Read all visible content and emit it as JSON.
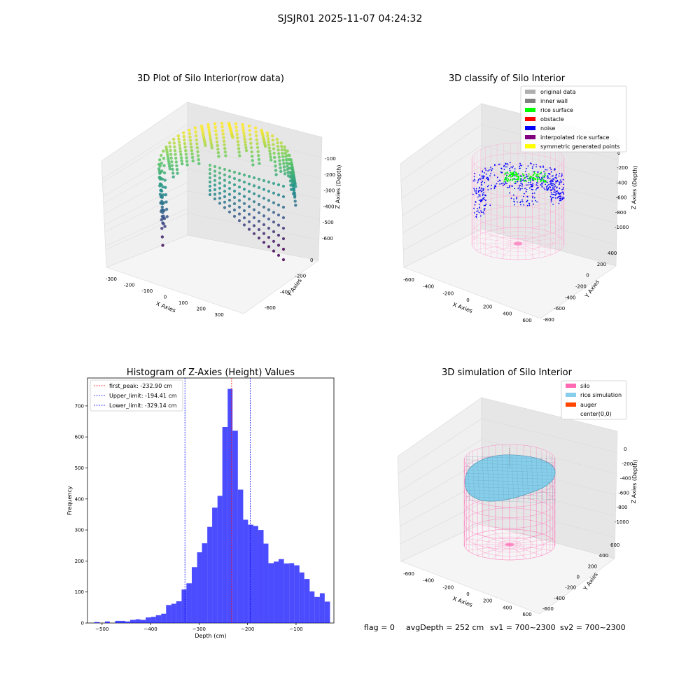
{
  "figure": {
    "suptitle": "SJSJR01 2025-11-07 04:24:32",
    "footer": {
      "flag": "flag = 0",
      "avg_depth": "avgDepth = 252 cm",
      "sv1": "sv1 = 700~2300",
      "sv2": "sv2 = 700~2300"
    }
  },
  "panels": {
    "raw": {
      "title": "3D Plot of Silo Interior(row data)",
      "xlabel": "X Axies",
      "ylabel": "Y Axies",
      "zlabel": "Z Axies (Depth)",
      "xticks": [
        "-300",
        "-200",
        "-100",
        "0",
        "100",
        "200",
        "300"
      ],
      "yticks": [
        "-600",
        "-400",
        "-200",
        "0"
      ],
      "zticks": [
        "-100",
        "-200",
        "-300",
        "-400",
        "-500",
        "-600"
      ],
      "colormap": "viridis"
    },
    "classify": {
      "title": "3D classify of Silo Interior",
      "xlabel": "X Axies",
      "ylabel": "Y Axies",
      "zlabel": "Z Axies (Depth)",
      "xticks": [
        "-600",
        "-400",
        "-200",
        "0",
        "200",
        "400",
        "600"
      ],
      "yticks": [
        "-800",
        "-600",
        "-400",
        "-200",
        "0",
        "200",
        "400"
      ],
      "zticks": [
        "0",
        "-200",
        "-400",
        "-600",
        "-800",
        "-1000"
      ],
      "legend": [
        {
          "label": "original data",
          "color": "#b0b0b0"
        },
        {
          "label": "inner wall",
          "color": "#808080"
        },
        {
          "label": "rice surface",
          "color": "#00ff00"
        },
        {
          "label": "obstacle",
          "color": "#ff0000"
        },
        {
          "label": "noise",
          "color": "#0000ff"
        },
        {
          "label": "interpolated rice surface",
          "color": "#800080"
        },
        {
          "label": "symmetric generated points",
          "color": "#ffff00"
        }
      ]
    },
    "simulation": {
      "title": "3D simulation of Silo Interior",
      "xlabel": "X Axies",
      "ylabel": "Y Axies",
      "zlabel": "Z Axies (Depth)",
      "xticks": [
        "-600",
        "-400",
        "-200",
        "0",
        "200",
        "400",
        "600"
      ],
      "yticks": [
        "-600",
        "-400",
        "-200",
        "0",
        "200",
        "400",
        "600"
      ],
      "zticks": [
        "0",
        "-200",
        "-400",
        "-600",
        "-800",
        "-1000"
      ],
      "legend": [
        {
          "label": "silo",
          "color": "#ff69b4"
        },
        {
          "label": "rice simulation",
          "color": "#87ceeb"
        },
        {
          "label": "auger",
          "color": "#ff4500"
        },
        {
          "label": "center(0,0)",
          "color": "#ffffff"
        }
      ]
    }
  },
  "chart_data": {
    "type": "bar",
    "title": "Histogram of Z-Axies (Height) Values",
    "xlabel": "Depth (cm)",
    "ylabel": "Frequency",
    "xlim": [
      -530,
      -22
    ],
    "ylim": [
      0,
      790
    ],
    "xticks": [
      -500,
      -400,
      -300,
      -200,
      -100
    ],
    "yticks": [
      0,
      100,
      200,
      300,
      400,
      500,
      600,
      700
    ],
    "bar_color": "#0000ff",
    "bar_opacity": 0.7,
    "bins": [
      {
        "x0": -516,
        "x1": -505,
        "count": 3
      },
      {
        "x0": -505,
        "x1": -494,
        "count": 0
      },
      {
        "x0": -494,
        "x1": -484,
        "count": 5
      },
      {
        "x0": -484,
        "x1": -473,
        "count": 0
      },
      {
        "x0": -473,
        "x1": -463,
        "count": 7
      },
      {
        "x0": -463,
        "x1": -452,
        "count": 7
      },
      {
        "x0": -452,
        "x1": -442,
        "count": 5
      },
      {
        "x0": -442,
        "x1": -431,
        "count": 10
      },
      {
        "x0": -431,
        "x1": -421,
        "count": 12
      },
      {
        "x0": -421,
        "x1": -410,
        "count": 10
      },
      {
        "x0": -410,
        "x1": -399,
        "count": 18
      },
      {
        "x0": -399,
        "x1": -389,
        "count": 20
      },
      {
        "x0": -389,
        "x1": -378,
        "count": 25
      },
      {
        "x0": -378,
        "x1": -368,
        "count": 30
      },
      {
        "x0": -368,
        "x1": -357,
        "count": 58
      },
      {
        "x0": -357,
        "x1": -347,
        "count": 62
      },
      {
        "x0": -347,
        "x1": -336,
        "count": 70
      },
      {
        "x0": -336,
        "x1": -326,
        "count": 108
      },
      {
        "x0": -326,
        "x1": -315,
        "count": 128
      },
      {
        "x0": -315,
        "x1": -304,
        "count": 180
      },
      {
        "x0": -304,
        "x1": -294,
        "count": 228
      },
      {
        "x0": -294,
        "x1": -283,
        "count": 257
      },
      {
        "x0": -283,
        "x1": -273,
        "count": 310
      },
      {
        "x0": -273,
        "x1": -262,
        "count": 372
      },
      {
        "x0": -262,
        "x1": -252,
        "count": 410
      },
      {
        "x0": -252,
        "x1": -241,
        "count": 632
      },
      {
        "x0": -241,
        "x1": -231,
        "count": 755
      },
      {
        "x0": -231,
        "x1": -220,
        "count": 620
      },
      {
        "x0": -220,
        "x1": -209,
        "count": 430
      },
      {
        "x0": -209,
        "x1": -199,
        "count": 333
      },
      {
        "x0": -199,
        "x1": -188,
        "count": 317
      },
      {
        "x0": -188,
        "x1": -178,
        "count": 313
      },
      {
        "x0": -178,
        "x1": -167,
        "count": 300
      },
      {
        "x0": -167,
        "x1": -157,
        "count": 256
      },
      {
        "x0": -157,
        "x1": -146,
        "count": 193
      },
      {
        "x0": -146,
        "x1": -136,
        "count": 198
      },
      {
        "x0": -136,
        "x1": -125,
        "count": 206
      },
      {
        "x0": -125,
        "x1": -114,
        "count": 192
      },
      {
        "x0": -114,
        "x1": -104,
        "count": 193
      },
      {
        "x0": -104,
        "x1": -93,
        "count": 186
      },
      {
        "x0": -93,
        "x1": -83,
        "count": 163
      },
      {
        "x0": -83,
        "x1": -72,
        "count": 142
      },
      {
        "x0": -72,
        "x1": -62,
        "count": 102
      },
      {
        "x0": -62,
        "x1": -51,
        "count": 84
      },
      {
        "x0": -51,
        "x1": -41,
        "count": 96
      },
      {
        "x0": -41,
        "x1": -30,
        "count": 69
      }
    ],
    "vlines": [
      {
        "label": "first_peak: -232.90 cm",
        "x": -232.9,
        "color": "#ff0000"
      },
      {
        "label": "Upper_limit: -194.41 cm",
        "x": -194.41,
        "color": "#0000ff"
      },
      {
        "label": "Lower_limit: -329.14 cm",
        "x": -329.14,
        "color": "#0000ff"
      }
    ]
  }
}
